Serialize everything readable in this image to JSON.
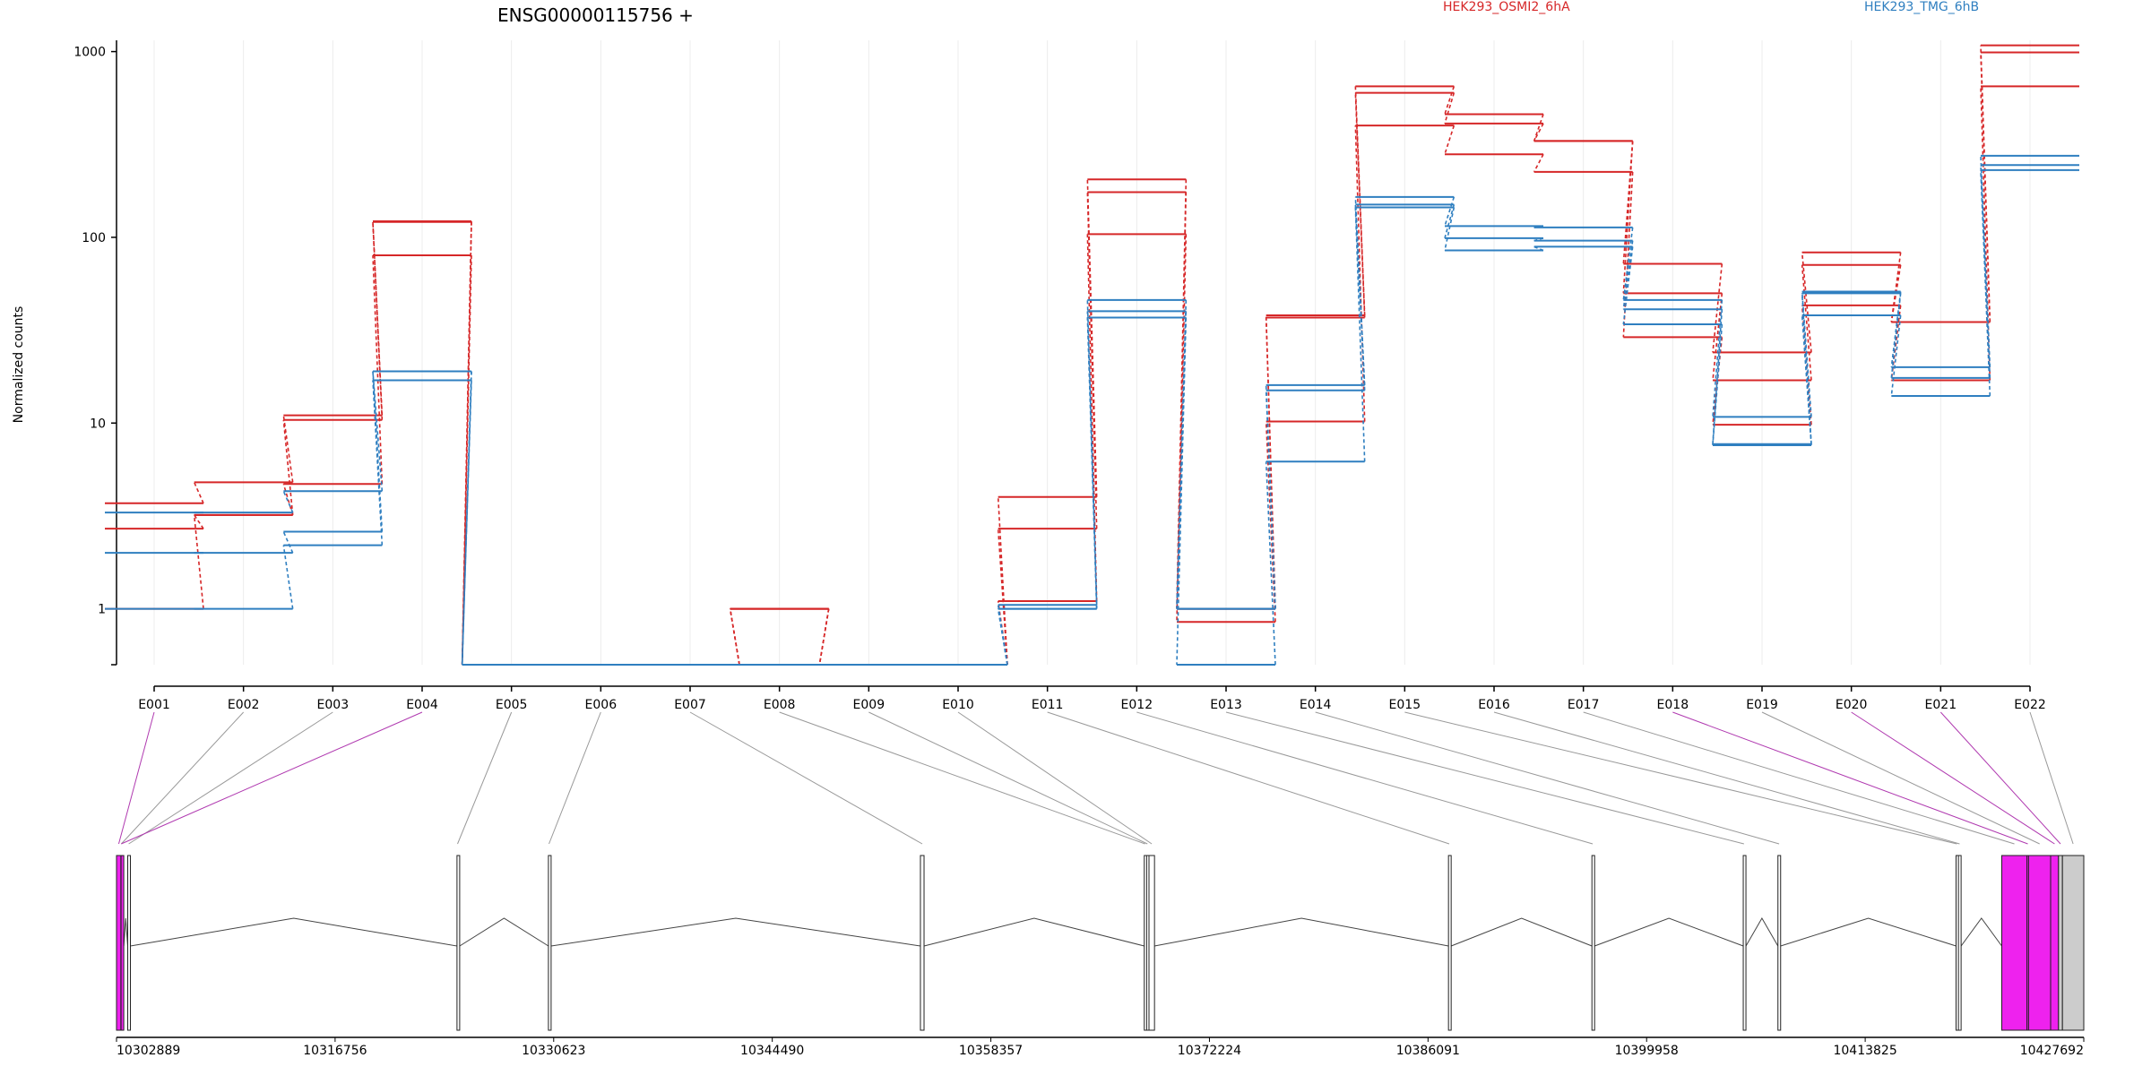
{
  "title": "ENSG00000115756 +",
  "ylabel": "Normalized counts",
  "legend": [
    {
      "name": "HEK293_OSMI2_6hA",
      "color": "#d62728"
    },
    {
      "name": "HEK293_TMG_6hB",
      "color": "#2f7fc0"
    }
  ],
  "chart_data": {
    "type": "line",
    "title": "ENSG00000115756 +",
    "ylabel": "Normalized counts",
    "xlabel": "",
    "yscale": "log",
    "ylim": [
      0.5,
      1150
    ],
    "yticks": [
      1,
      10,
      100,
      1000
    ],
    "ytick_labels": [
      "1",
      "10",
      "100",
      "1000"
    ],
    "grid": "vertical",
    "legend_position": "top",
    "categories": [
      "E001",
      "E002",
      "E003",
      "E004",
      "E005",
      "E006",
      "E007",
      "E008",
      "E009",
      "E010",
      "E011",
      "E012",
      "E013",
      "E014",
      "E015",
      "E016",
      "E017",
      "E018",
      "E019",
      "E020",
      "E021",
      "E022"
    ],
    "series": [
      {
        "group": "HEK293_OSMI2_6hA",
        "color": "#d62728",
        "values": [
          3.7,
          4.8,
          11,
          122,
          0.5,
          0.5,
          0.5,
          1.0,
          0.5,
          0.5,
          4.0,
          205,
          1.0,
          38,
          650,
          460,
          330,
          72,
          24,
          83,
          35,
          1080
        ]
      },
      {
        "group": "HEK293_OSMI2_6hA",
        "color": "#d62728",
        "values": [
          2.7,
          3.2,
          10.4,
          121,
          0.5,
          0.5,
          0.5,
          1.0,
          0.5,
          0.5,
          2.7,
          175,
          1.0,
          37,
          600,
          410,
          330,
          50,
          17,
          71,
          35,
          990
        ]
      },
      {
        "group": "HEK293_OSMI2_6hA",
        "color": "#d62728",
        "values": [
          1.0,
          3.2,
          4.7,
          80,
          0.5,
          0.5,
          0.5,
          1.0,
          0.5,
          0.5,
          1.1,
          104,
          0.85,
          10.2,
          400,
          280,
          225,
          29,
          9.8,
          43,
          17,
          650
        ]
      },
      {
        "group": "HEK293_TMG_6hB",
        "color": "#2f7fc0",
        "values": [
          3.3,
          3.3,
          4.3,
          19,
          0.5,
          0.5,
          0.5,
          0.5,
          0.5,
          0.5,
          1.05,
          46,
          1.0,
          16,
          165,
          115,
          113,
          46,
          10.8,
          51,
          20,
          275
        ]
      },
      {
        "group": "HEK293_TMG_6hB",
        "color": "#2f7fc0",
        "values": [
          2.0,
          2.0,
          2.6,
          19,
          0.5,
          0.5,
          0.5,
          0.5,
          0.5,
          0.5,
          1.0,
          40,
          1.0,
          15,
          150,
          99,
          96,
          41,
          7.7,
          50,
          17.5,
          245
        ]
      },
      {
        "group": "HEK293_TMG_6hB",
        "color": "#2f7fc0",
        "values": [
          1.0,
          1.0,
          2.2,
          17,
          0.5,
          0.5,
          0.5,
          0.5,
          0.5,
          0.5,
          1.0,
          37,
          0.5,
          6.2,
          145,
          85,
          89,
          34,
          7.6,
          38,
          14,
          230
        ]
      }
    ],
    "genome_ticks": [
      "10302889",
      "10316756",
      "10330623",
      "10344490",
      "10358357",
      "10372224",
      "10386091",
      "10399958",
      "10413825",
      "10427692"
    ],
    "genome_range": [
      10302889,
      10427692
    ],
    "exon_fill": "#ee22ee",
    "exon_gray_fill": "#cccccc",
    "exons": [
      {
        "id": "E001",
        "start": 10302889,
        "end": 10303169,
        "fill": "exon"
      },
      {
        "id": "E002",
        "start": 10303169,
        "end": 10303219,
        "fill": "white"
      },
      {
        "id": "E003",
        "start": 10303599,
        "end": 10303729,
        "fill": "white"
      },
      {
        "id": "E004",
        "start": 10303179,
        "end": 10303199,
        "fill": "exon"
      },
      {
        "id": "E005",
        "start": 10324489,
        "end": 10324559,
        "fill": "white"
      },
      {
        "id": "E006",
        "start": 10330289,
        "end": 10330359,
        "fill": "white"
      },
      {
        "id": "E007",
        "start": 10353889,
        "end": 10354119,
        "fill": "white"
      },
      {
        "id": "E008",
        "start": 10368089,
        "end": 10368189,
        "fill": "white"
      },
      {
        "id": "E009",
        "start": 10368239,
        "end": 10368339,
        "fill": "white"
      },
      {
        "id": "E010",
        "start": 10368389,
        "end": 10368739,
        "fill": "white"
      },
      {
        "id": "E011",
        "start": 10387389,
        "end": 10387479,
        "fill": "white"
      },
      {
        "id": "E012",
        "start": 10396489,
        "end": 10396579,
        "fill": "white"
      },
      {
        "id": "E013",
        "start": 10406089,
        "end": 10406179,
        "fill": "white"
      },
      {
        "id": "E014",
        "start": 10408289,
        "end": 10408439,
        "fill": "white"
      },
      {
        "id": "E015",
        "start": 10419589,
        "end": 10419689,
        "fill": "white"
      },
      {
        "id": "E016",
        "start": 10419739,
        "end": 10419889,
        "fill": "white"
      },
      {
        "id": "E017",
        "start": 10422489,
        "end": 10424089,
        "fill": "exon"
      },
      {
        "id": "E018",
        "start": 10424089,
        "end": 10424189,
        "fill": "exon"
      },
      {
        "id": "E019",
        "start": 10424189,
        "end": 10425589,
        "fill": "exon"
      },
      {
        "id": "E020",
        "start": 10425589,
        "end": 10426089,
        "fill": "exon"
      },
      {
        "id": "E021",
        "start": 10426089,
        "end": 10426339,
        "fill": "gray"
      },
      {
        "id": "E022",
        "start": 10426339,
        "end": 10427692,
        "fill": "gray"
      }
    ],
    "highlighted_connectors": [
      "E001",
      "E004",
      "E018",
      "E020",
      "E021"
    ],
    "connector_highlight_color": "#b03ab0"
  }
}
